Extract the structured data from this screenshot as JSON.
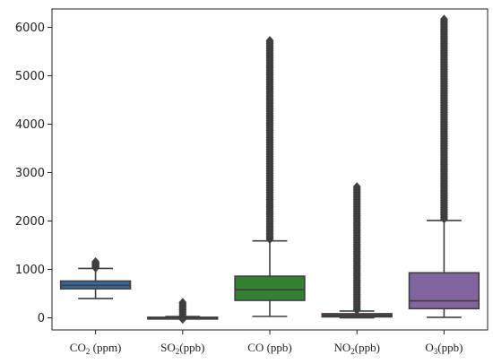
{
  "chart_data": {
    "type": "box",
    "title": "",
    "xlabel": "",
    "ylabel": "",
    "ylim": [
      -250,
      6380
    ],
    "yticks": [
      0,
      1000,
      2000,
      3000,
      4000,
      5000,
      6000
    ],
    "ytick_labels": [
      "0",
      "1000",
      "2000",
      "3000",
      "4000",
      "5000",
      "6000"
    ],
    "grid": false,
    "legend": "none",
    "categories": [
      {
        "main": "CO",
        "sub": "2",
        "unit": " (ppm)"
      },
      {
        "main": "SO",
        "sub": "2",
        "unit": "(ppb)"
      },
      {
        "main": "CO (ppb)",
        "sub": "",
        "unit": ""
      },
      {
        "main": "NO",
        "sub": "2",
        "unit": "(ppb)"
      },
      {
        "main": "O",
        "sub": "3",
        "unit": "(ppb)"
      }
    ],
    "series": [
      {
        "whisker_low": 400,
        "q1": 600,
        "median": 670,
        "q3": 760,
        "whisker_high": 1020,
        "outliers_min": 1030,
        "outliers_max": 1160,
        "color": "#3b75af"
      },
      {
        "whisker_low": 0,
        "q1": 3,
        "median": 6,
        "q3": 12,
        "whisker_high": 28,
        "outliers_min": 40,
        "outliers_max": 320,
        "color": "#ef8636",
        "outliers_below": [
          -30
        ]
      },
      {
        "whisker_low": 30,
        "q1": 360,
        "median": 580,
        "q3": 860,
        "whisker_high": 1590,
        "outliers_min": 1620,
        "outliers_max": 5730,
        "color": "#3a923a"
      },
      {
        "whisker_low": 0,
        "q1": 20,
        "median": 50,
        "q3": 85,
        "whisker_high": 140,
        "outliers_min": 160,
        "outliers_max": 2710,
        "color": "#c03d3e"
      },
      {
        "whisker_low": 10,
        "q1": 190,
        "median": 350,
        "q3": 930,
        "whisker_high": 2010,
        "outliers_min": 2040,
        "outliers_max": 6170,
        "color": "#9372b2"
      }
    ]
  }
}
